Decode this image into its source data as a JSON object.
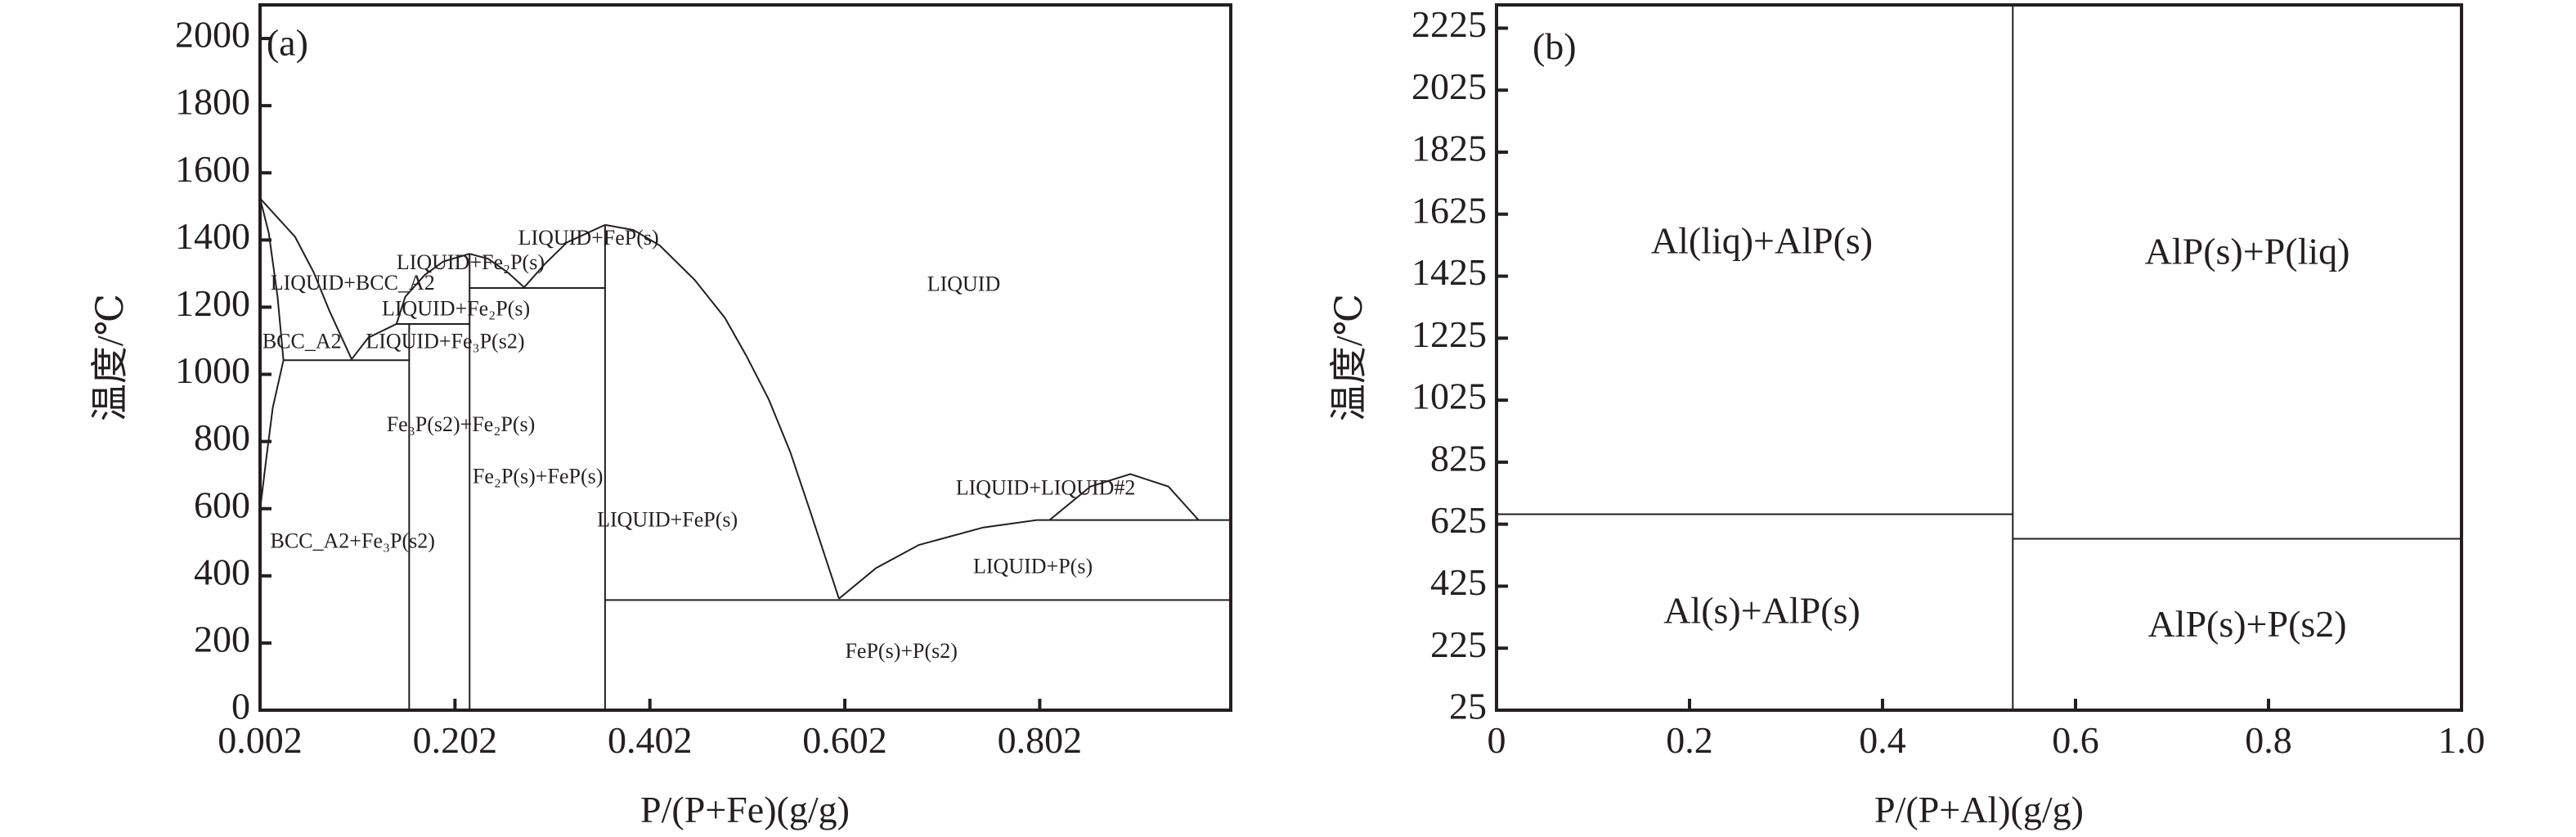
{
  "colors": {
    "ink": "#231f20",
    "background": "#ffffff"
  },
  "chart_data": [
    {
      "type": "line",
      "panel_label": "(a)",
      "xlabel": "P/(P+Fe)(g/g)",
      "ylabel": "温度/℃",
      "xlim": [
        0.002,
        0.998
      ],
      "ylim": [
        0,
        2100
      ],
      "xticks": [
        0.202,
        0.402,
        0.602,
        0.802
      ],
      "xtick_labels": [
        "0.002",
        "0.202",
        "0.402",
        "0.602",
        "0.802"
      ],
      "xtick_label_values": [
        0.002,
        0.202,
        0.402,
        0.602,
        0.802
      ],
      "yticks": [
        0,
        200,
        400,
        600,
        800,
        1000,
        1200,
        1400,
        1600,
        1800,
        2000
      ],
      "ytick_labels": [
        "0",
        "200",
        "400",
        "600",
        "800",
        "1000",
        "1200",
        "1400",
        "1600",
        "1800",
        "2000"
      ],
      "grid": false,
      "boundaries": [
        [
          [
            0.002,
            1524
          ],
          [
            0.038,
            1409
          ],
          [
            0.057,
            1304
          ],
          [
            0.073,
            1190
          ],
          [
            0.096,
            1045
          ]
        ],
        [
          [
            0.002,
            1524
          ],
          [
            0.011,
            1420
          ],
          [
            0.02,
            1230
          ],
          [
            0.026,
            1042
          ]
        ],
        [
          [
            0.026,
            1042
          ],
          [
            0.015,
            900
          ],
          [
            0.008,
            740
          ],
          [
            0.003,
            620
          ]
        ],
        [
          [
            0.026,
            1042
          ],
          [
            0.155,
            1042
          ]
        ],
        [
          [
            0.096,
            1045
          ],
          [
            0.113,
            1109
          ],
          [
            0.142,
            1150
          ],
          [
            0.151,
            1231
          ],
          [
            0.171,
            1296
          ],
          [
            0.19,
            1336
          ],
          [
            0.217,
            1359
          ]
        ],
        [
          [
            0.142,
            1150
          ],
          [
            0.217,
            1150
          ]
        ],
        [
          [
            0.155,
            0
          ],
          [
            0.155,
            1150
          ]
        ],
        [
          [
            0.217,
            0
          ],
          [
            0.217,
            1359
          ]
        ],
        [
          [
            0.217,
            1359
          ],
          [
            0.236,
            1344
          ],
          [
            0.256,
            1304
          ],
          [
            0.273,
            1259
          ],
          [
            0.294,
            1328
          ],
          [
            0.317,
            1393
          ],
          [
            0.356,
            1445
          ]
        ],
        [
          [
            0.217,
            1257
          ],
          [
            0.356,
            1257
          ]
        ],
        [
          [
            0.356,
            0
          ],
          [
            0.356,
            1445
          ]
        ],
        [
          [
            0.356,
            1445
          ],
          [
            0.385,
            1430
          ],
          [
            0.412,
            1384
          ],
          [
            0.448,
            1281
          ],
          [
            0.479,
            1168
          ],
          [
            0.501,
            1055
          ],
          [
            0.524,
            925
          ],
          [
            0.546,
            769
          ],
          [
            0.568,
            579
          ],
          [
            0.596,
            332
          ]
        ],
        [
          [
            0.356,
            328
          ],
          [
            0.998,
            328
          ]
        ],
        [
          [
            0.596,
            332
          ],
          [
            0.634,
            423
          ],
          [
            0.678,
            492
          ],
          [
            0.744,
            544
          ],
          [
            0.799,
            566
          ]
        ],
        [
          [
            0.799,
            566
          ],
          [
            0.998,
            566
          ]
        ],
        [
          [
            0.812,
            566
          ],
          [
            0.854,
            666
          ],
          [
            0.895,
            703
          ],
          [
            0.934,
            666
          ],
          [
            0.965,
            566
          ]
        ]
      ],
      "annotations": [
        {
          "text": "LIQUID",
          "x": 0.724,
          "T": 1263
        },
        {
          "text": "LIQUID+FeP(s)",
          "x": 0.339,
          "T": 1401
        },
        {
          "text": "LIQUID+Fe₂P(s)",
          "x": 0.218,
          "T": 1328
        },
        {
          "text": "LIQUID+BCC_A2",
          "x": 0.097,
          "T": 1267
        },
        {
          "text": "LIQUID+Fe₂P(s)",
          "x": 0.203,
          "T": 1190
        },
        {
          "text": "BCC_A2",
          "x": 0.045,
          "T": 1093
        },
        {
          "text": "LIQUID+Fe₃P(s2)",
          "x": 0.192,
          "T": 1093
        },
        {
          "text": "Fe₃P(s2)+Fe₂P(s)",
          "x": 0.208,
          "T": 845
        },
        {
          "text": "Fe₂P(s)+FeP(s)",
          "x": 0.287,
          "T": 690
        },
        {
          "text": "BCC_A2+Fe₃P(s2)",
          "x": 0.097,
          "T": 498
        },
        {
          "text": "LIQUID+FeP(s)",
          "x": 0.42,
          "T": 562
        },
        {
          "text": "LIQUID+LIQUID#2",
          "x": 0.808,
          "T": 657
        },
        {
          "text": "LIQUID+P(s)",
          "x": 0.795,
          "T": 423
        },
        {
          "text": "FeP(s)+P(s2)",
          "x": 0.66,
          "T": 170
        }
      ]
    },
    {
      "type": "line",
      "panel_label": "(b)",
      "xlabel": "P/(P+Al)(g/g)",
      "ylabel": "温度/℃",
      "xlim": [
        0,
        1.0
      ],
      "ylim": [
        25,
        2300
      ],
      "xticks": [
        0.2,
        0.4,
        0.6,
        0.8
      ],
      "xtick_labels": [
        "0",
        "0.2",
        "0.4",
        "0.6",
        "0.8",
        "1.0"
      ],
      "xtick_label_values": [
        0,
        0.2,
        0.4,
        0.6,
        0.8,
        1.0
      ],
      "yticks": [
        25,
        225,
        425,
        625,
        825,
        1025,
        1225,
        1425,
        1625,
        1825,
        2025,
        2225
      ],
      "ytick_labels": [
        "25",
        "225",
        "425",
        "625",
        "825",
        "1025",
        "1225",
        "1425",
        "1625",
        "1825",
        "2025",
        "2225"
      ],
      "grid": false,
      "boundaries": [
        [
          [
            0.535,
            25
          ],
          [
            0.535,
            2300
          ]
        ],
        [
          [
            0,
            657
          ],
          [
            0.535,
            657
          ]
        ],
        [
          [
            0.535,
            578
          ],
          [
            1.0,
            578
          ]
        ]
      ],
      "annotations": [
        {
          "text": "Al(liq)+AlP(s)",
          "x": 0.275,
          "T": 1527
        },
        {
          "text": "Al(s)+AlP(s)",
          "x": 0.275,
          "T": 334
        },
        {
          "text": "AlP(s)+P(liq)",
          "x": 0.778,
          "T": 1493
        },
        {
          "text": "AlP(s)+P(s2)",
          "x": 0.778,
          "T": 291
        }
      ]
    }
  ]
}
